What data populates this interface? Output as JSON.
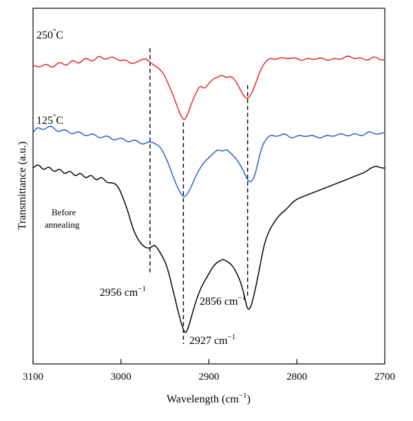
{
  "chart_data": {
    "type": "line",
    "title": "",
    "xlabel": "Wavelength (cm",
    "xlabel_sup": "−1",
    "xlabel_close": ")",
    "ylabel": "Transmittance (a.u.)",
    "xlim": [
      3100,
      2700
    ],
    "x_reversed": true,
    "ylim": [
      0,
      1
    ],
    "x_ticks": [
      3100,
      3000,
      2900,
      2800,
      2700
    ],
    "y_ticks_shown": false,
    "grid": false,
    "legend": "inline labels",
    "series": [
      {
        "name": "250°C",
        "color": "#e8262a",
        "x": [
          3100,
          3092,
          3085,
          3078,
          3070,
          3062,
          3055,
          3048,
          3040,
          3032,
          3025,
          3018,
          3010,
          3002,
          2995,
          2988,
          2980,
          2972,
          2966,
          2960,
          2955,
          2950,
          2945,
          2940,
          2935,
          2931,
          2928,
          2925,
          2920,
          2915,
          2910,
          2905,
          2900,
          2895,
          2890,
          2885,
          2880,
          2875,
          2870,
          2865,
          2860,
          2856,
          2852,
          2848,
          2844,
          2840,
          2835,
          2830,
          2825,
          2818,
          2810,
          2802,
          2795,
          2788,
          2780,
          2772,
          2765,
          2758,
          2750,
          2742,
          2735,
          2728,
          2720,
          2712,
          2705,
          2700
        ],
        "y": [
          0.907,
          0.9,
          0.914,
          0.896,
          0.921,
          0.903,
          0.928,
          0.91,
          0.935,
          0.917,
          0.942,
          0.924,
          0.939,
          0.921,
          0.928,
          0.91,
          0.921,
          0.932,
          0.914,
          0.903,
          0.892,
          0.871,
          0.836,
          0.801,
          0.759,
          0.731,
          0.721,
          0.735,
          0.777,
          0.812,
          0.84,
          0.826,
          0.847,
          0.861,
          0.868,
          0.875,
          0.864,
          0.871,
          0.857,
          0.829,
          0.801,
          0.794,
          0.808,
          0.836,
          0.871,
          0.9,
          0.921,
          0.932,
          0.925,
          0.935,
          0.928,
          0.935,
          0.921,
          0.932,
          0.925,
          0.935,
          0.921,
          0.932,
          0.925,
          0.942,
          0.928,
          0.935,
          0.921,
          0.939,
          0.925,
          0.925
        ]
      },
      {
        "name": "125°C",
        "color": "#2d5bd1",
        "x": [
          3100,
          3095,
          3088,
          3080,
          3072,
          3064,
          3056,
          3048,
          3040,
          3032,
          3024,
          3016,
          3008,
          3000,
          2992,
          2984,
          2976,
          2968,
          2960,
          2955,
          2950,
          2945,
          2940,
          2935,
          2931,
          2928,
          2925,
          2920,
          2915,
          2910,
          2905,
          2900,
          2895,
          2890,
          2885,
          2880,
          2875,
          2870,
          2865,
          2860,
          2856,
          2852,
          2848,
          2844,
          2840,
          2835,
          2830,
          2822,
          2814,
          2806,
          2798,
          2790,
          2782,
          2774,
          2766,
          2758,
          2750,
          2742,
          2734,
          2726,
          2718,
          2710,
          2702,
          2700
        ],
        "y": [
          0.679,
          0.7,
          0.686,
          0.707,
          0.679,
          0.693,
          0.672,
          0.686,
          0.665,
          0.679,
          0.658,
          0.672,
          0.651,
          0.665,
          0.645,
          0.658,
          0.637,
          0.651,
          0.641,
          0.63,
          0.602,
          0.567,
          0.525,
          0.49,
          0.469,
          0.461,
          0.469,
          0.497,
          0.532,
          0.56,
          0.581,
          0.595,
          0.609,
          0.623,
          0.616,
          0.623,
          0.609,
          0.595,
          0.574,
          0.546,
          0.518,
          0.511,
          0.532,
          0.581,
          0.63,
          0.658,
          0.672,
          0.665,
          0.679,
          0.658,
          0.672,
          0.665,
          0.672,
          0.658,
          0.672,
          0.665,
          0.679,
          0.665,
          0.679,
          0.665,
          0.686,
          0.672,
          0.679,
          0.679
        ]
      },
      {
        "name": "Before annealing",
        "color": "#000000",
        "x": [
          3100,
          3094,
          3088,
          3082,
          3076,
          3070,
          3064,
          3058,
          3052,
          3046,
          3040,
          3034,
          3028,
          3022,
          3016,
          3010,
          3004,
          2998,
          2992,
          2986,
          2980,
          2974,
          2968,
          2962,
          2958,
          2954,
          2950,
          2946,
          2942,
          2938,
          2934,
          2930,
          2927,
          2924,
          2920,
          2916,
          2912,
          2908,
          2904,
          2900,
          2896,
          2892,
          2888,
          2884,
          2880,
          2876,
          2872,
          2868,
          2864,
          2860,
          2856,
          2852,
          2848,
          2844,
          2840,
          2836,
          2830,
          2824,
          2818,
          2812,
          2806,
          2800,
          2794,
          2788,
          2782,
          2776,
          2770,
          2764,
          2758,
          2752,
          2746,
          2740,
          2734,
          2728,
          2722,
          2716,
          2710,
          2704,
          2700
        ],
        "y": [
          0.56,
          0.574,
          0.551,
          0.567,
          0.544,
          0.56,
          0.537,
          0.553,
          0.53,
          0.546,
          0.523,
          0.539,
          0.516,
          0.532,
          0.509,
          0.511,
          0.502,
          0.462,
          0.413,
          0.35,
          0.315,
          0.294,
          0.287,
          0.301,
          0.287,
          0.266,
          0.245,
          0.21,
          0.161,
          0.112,
          0.063,
          0.021,
          0.0,
          0.014,
          0.056,
          0.098,
          0.133,
          0.161,
          0.182,
          0.203,
          0.224,
          0.238,
          0.245,
          0.252,
          0.245,
          0.238,
          0.224,
          0.203,
          0.175,
          0.133,
          0.077,
          0.091,
          0.14,
          0.196,
          0.259,
          0.315,
          0.357,
          0.385,
          0.406,
          0.42,
          0.441,
          0.455,
          0.462,
          0.469,
          0.476,
          0.483,
          0.49,
          0.497,
          0.504,
          0.511,
          0.518,
          0.525,
          0.532,
          0.539,
          0.546,
          0.56,
          0.567,
          0.56,
          0.56
        ]
      }
    ],
    "labels": [
      {
        "text": "250",
        "sup": "°",
        "tail": "C",
        "series": 0
      },
      {
        "text": "125",
        "sup": "°",
        "tail": "C",
        "series": 1
      },
      {
        "text_line1": "Before",
        "text_line2": "annealing",
        "series": 2
      }
    ],
    "annotations": [
      {
        "x": 2967,
        "value": "2956",
        "unit": "cm",
        "sup": "−1",
        "y_top": 0.965,
        "y_bottom": 0.203,
        "label_anchor": "end"
      },
      {
        "x": 2929,
        "value": "2927",
        "unit": "cm",
        "sup": "−1",
        "y_top": 0.714,
        "y_bottom": -0.035,
        "label_anchor": "start"
      },
      {
        "x": 2856,
        "value": "2856",
        "unit": "cm",
        "sup": "−1",
        "y_top": 0.84,
        "y_bottom": 0.126,
        "label_anchor": "start"
      }
    ]
  }
}
